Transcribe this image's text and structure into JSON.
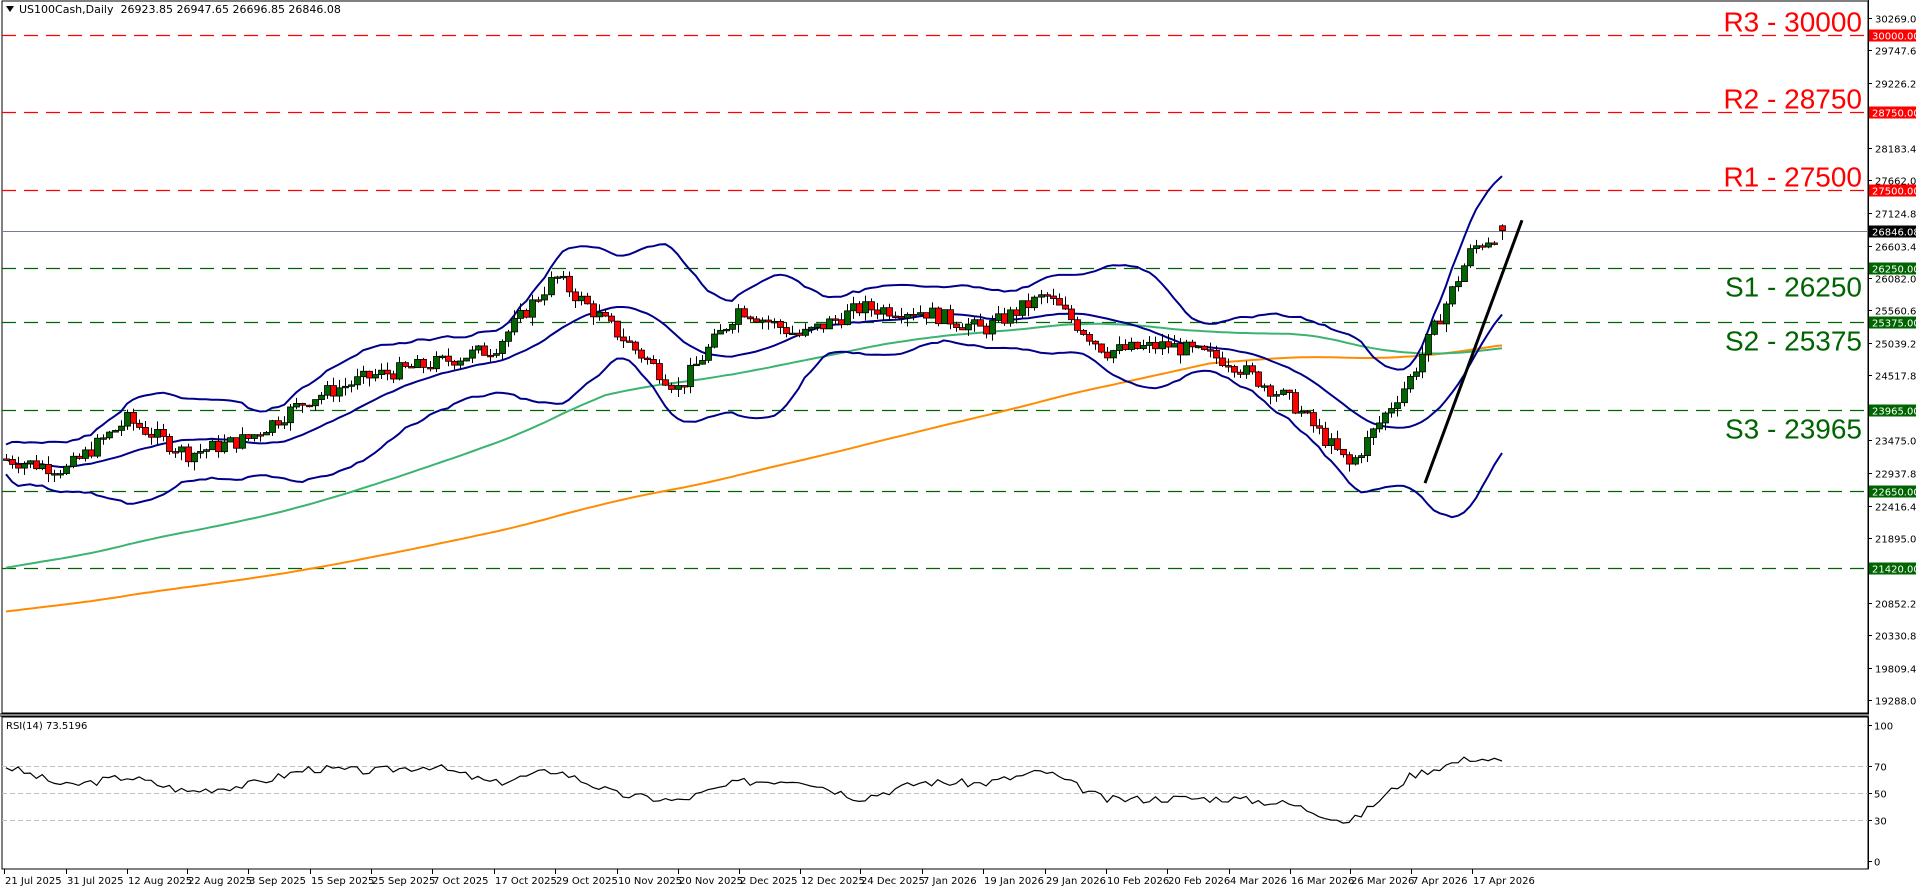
{
  "header": {
    "symbol": "US100Cash,Daily",
    "ohlc": "26923.85 26947.65 26696.85 26846.08"
  },
  "rsi_header": "RSI(14) 73.5196",
  "colors": {
    "resistance": "#ff0000",
    "support": "#006400",
    "bull_candle": "#006400",
    "bear_candle": "#ff0000",
    "bollinger": "#00008b",
    "ma_green": "#3cb371",
    "ma_orange": "#ff8c00",
    "trendline": "#000000",
    "current_price_line": "#708090",
    "rsi_line": "#000000",
    "rsi_levels": "#c0c0c0"
  },
  "price_axis": {
    "ticks": [
      "30269.00",
      "29747.60",
      "29226.20",
      "28183.40",
      "27662.00",
      "27124.80",
      "26603.40",
      "26082.00",
      "25560.60",
      "25039.20",
      "24517.80",
      "23475.00",
      "22937.80",
      "22416.40",
      "21895.00",
      "20852.20",
      "20330.80",
      "19809.40",
      "19288.00"
    ],
    "current_price_tag": "26846.08"
  },
  "levels": [
    {
      "name": "R3",
      "label": "R3 - 30000",
      "value": 30000,
      "tag": "30000.00",
      "type": "resistance"
    },
    {
      "name": "R2",
      "label": "R2 - 28750",
      "value": 28750,
      "tag": "28750.00",
      "type": "resistance"
    },
    {
      "name": "R1",
      "label": "R1 - 27500",
      "value": 27500,
      "tag": "27500.00",
      "type": "resistance"
    },
    {
      "name": "S1",
      "label": "S1 - 26250",
      "value": 26250,
      "tag": "26250.00",
      "type": "support"
    },
    {
      "name": "S2",
      "label": "S2 - 25375",
      "value": 25375,
      "tag": "25375.00",
      "type": "support"
    },
    {
      "name": "S3",
      "label": "S3 - 23965",
      "value": 23965,
      "tag": "23965.00",
      "type": "support"
    },
    {
      "name": "L5",
      "label": "",
      "value": 22650,
      "tag": "22650.00",
      "type": "support"
    },
    {
      "name": "L6",
      "label": "",
      "value": 21420,
      "tag": "21420.00",
      "type": "support"
    }
  ],
  "rsi_axis": {
    "ticks": [
      "100",
      "70",
      "50",
      "30",
      "0"
    ]
  },
  "date_axis": [
    "21 Jul 2025",
    "31 Jul 2025",
    "12 Aug 2025",
    "22 Aug 2025",
    "3 Sep 2025",
    "15 Sep 2025",
    "25 Sep 2025",
    "7 Oct 2025",
    "17 Oct 2025",
    "29 Oct 2025",
    "10 Nov 2025",
    "20 Nov 2025",
    "2 Dec 2025",
    "12 Dec 2025",
    "24 Dec 2025",
    "7 Jan 2026",
    "19 Jan 2026",
    "29 Jan 2026",
    "10 Feb 2026",
    "20 Feb 2026",
    "4 Mar 2026",
    "16 Mar 2026",
    "26 Mar 2026",
    "7 Apr 2026",
    "17 Apr 2026"
  ],
  "chart_data": {
    "type": "candlestick",
    "title": "US100Cash, Daily",
    "last_bar": {
      "open": 26923.85,
      "high": 26947.65,
      "low": 26696.85,
      "close": 26846.08
    },
    "ylim": [
      19288,
      30269
    ],
    "x_range": [
      "21 Jul 2025",
      "22 Apr 2026"
    ],
    "grid": false,
    "indicators": [
      "Bollinger Bands (upper/middle/lower)",
      "Moving average (green, ~100)",
      "Moving average (orange, ~200)",
      "RSI(14)"
    ],
    "horizontal_levels": {
      "R3": 30000,
      "R2": 28750,
      "R1": 27500,
      "S1": 26250,
      "S2": 25375,
      "S3": 23965,
      "extra_support": [
        22650,
        21420
      ]
    },
    "trendline": {
      "from": {
        "date": "30 Mar 2026",
        "price": 22780
      },
      "to": {
        "date": "22 Apr 2026",
        "price": 26820
      },
      "type": "ascending support"
    },
    "approx_close_path": [
      {
        "date": "21 Jul 2025",
        "close": 23170
      },
      {
        "date": "31 Jul 2025",
        "close": 23000
      },
      {
        "date": "12 Aug 2025",
        "close": 23800
      },
      {
        "date": "22 Aug 2025",
        "close": 23250
      },
      {
        "date": "3 Sep 2025",
        "close": 23500
      },
      {
        "date": "15 Sep 2025",
        "close": 24150
      },
      {
        "date": "25 Sep 2025",
        "close": 24500
      },
      {
        "date": "7 Oct 2025",
        "close": 24700
      },
      {
        "date": "17 Oct 2025",
        "close": 24950
      },
      {
        "date": "29 Oct 2025",
        "close": 26100
      },
      {
        "date": "10 Nov 2025",
        "close": 25200
      },
      {
        "date": "20 Nov 2025",
        "close": 24300
      },
      {
        "date": "2 Dec 2025",
        "close": 25600
      },
      {
        "date": "12 Dec 2025",
        "close": 25150
      },
      {
        "date": "24 Dec 2025",
        "close": 25600
      },
      {
        "date": "7 Jan 2026",
        "close": 25550
      },
      {
        "date": "19 Jan 2026",
        "close": 25250
      },
      {
        "date": "29 Jan 2026",
        "close": 25800
      },
      {
        "date": "10 Feb 2026",
        "close": 24900
      },
      {
        "date": "20 Feb 2026",
        "close": 25000
      },
      {
        "date": "4 Mar 2026",
        "close": 24750
      },
      {
        "date": "16 Mar 2026",
        "close": 24100
      },
      {
        "date": "26 Mar 2026",
        "close": 23050
      },
      {
        "date": "7 Apr 2026",
        "close": 24500
      },
      {
        "date": "17 Apr 2026",
        "close": 26550
      },
      {
        "date": "22 Apr 2026",
        "close": 26846
      }
    ],
    "rsi": {
      "period": 14,
      "last": 73.5196,
      "levels": [
        70,
        50,
        30
      ],
      "ylim": [
        0,
        100
      ],
      "approx_path": [
        {
          "date": "21 Jul 2025",
          "value": 70
        },
        {
          "date": "31 Jul 2025",
          "value": 55
        },
        {
          "date": "12 Aug 2025",
          "value": 62
        },
        {
          "date": "22 Aug 2025",
          "value": 51
        },
        {
          "date": "3 Sep 2025",
          "value": 56
        },
        {
          "date": "15 Sep 2025",
          "value": 68
        },
        {
          "date": "25 Sep 2025",
          "value": 66
        },
        {
          "date": "7 Oct 2025",
          "value": 70
        },
        {
          "date": "17 Oct 2025",
          "value": 57
        },
        {
          "date": "29 Oct 2025",
          "value": 67
        },
        {
          "date": "10 Nov 2025",
          "value": 49
        },
        {
          "date": "20 Nov 2025",
          "value": 44
        },
        {
          "date": "2 Dec 2025",
          "value": 58
        },
        {
          "date": "12 Dec 2025",
          "value": 60
        },
        {
          "date": "24 Dec 2025",
          "value": 46
        },
        {
          "date": "7 Jan 2026",
          "value": 58
        },
        {
          "date": "19 Jan 2026",
          "value": 57
        },
        {
          "date": "29 Jan 2026",
          "value": 66
        },
        {
          "date": "10 Feb 2026",
          "value": 45
        },
        {
          "date": "20 Feb 2026",
          "value": 46
        },
        {
          "date": "4 Mar 2026",
          "value": 46
        },
        {
          "date": "16 Mar 2026",
          "value": 42
        },
        {
          "date": "26 Mar 2026",
          "value": 28
        },
        {
          "date": "7 Apr 2026",
          "value": 63
        },
        {
          "date": "17 Apr 2026",
          "value": 76
        },
        {
          "date": "22 Apr 2026",
          "value": 73.5
        }
      ]
    }
  }
}
